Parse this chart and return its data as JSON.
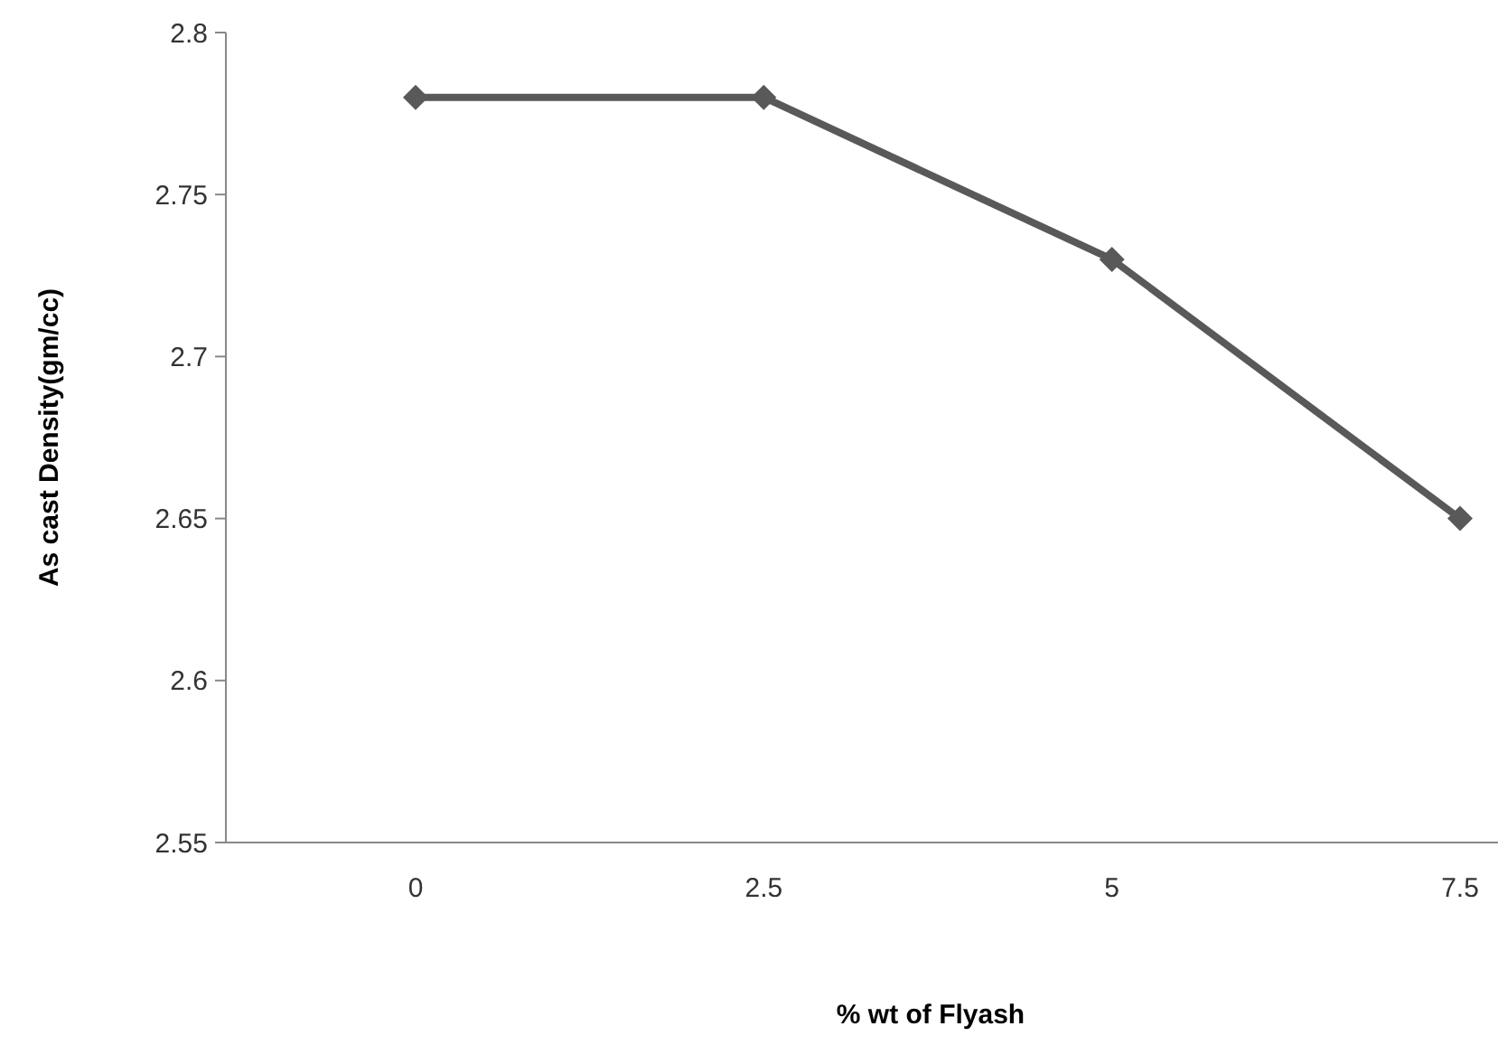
{
  "chart_data": {
    "type": "line",
    "xlabel": "% wt of Flyash",
    "ylabel": "As cast Density(gm/cc)",
    "categories": [
      "0",
      "2.5",
      "5",
      "7.5"
    ],
    "series": [
      {
        "color": "#595959",
        "values": [
          2.78,
          2.78,
          2.73,
          2.65
        ]
      }
    ],
    "ylim": [
      2.55,
      2.8
    ],
    "yticks": [
      2.55,
      2.6,
      2.65,
      2.7,
      2.75,
      2.8
    ],
    "grid": false,
    "marker": "diamond",
    "line_style": "solid"
  }
}
